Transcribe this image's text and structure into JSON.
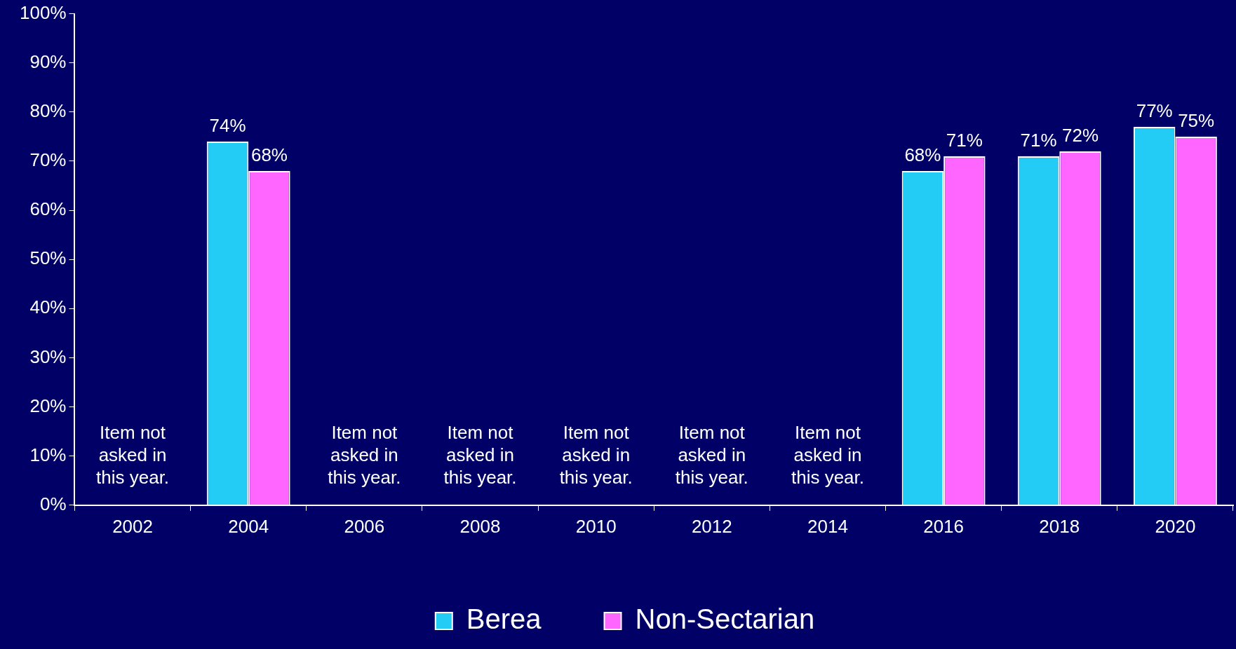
{
  "chart_data": {
    "type": "bar",
    "categories": [
      "2002",
      "2004",
      "2006",
      "2008",
      "2010",
      "2012",
      "2014",
      "2016",
      "2018",
      "2020"
    ],
    "series": [
      {
        "name": "Berea",
        "color": "#22ccf5",
        "values": [
          null,
          74,
          null,
          null,
          null,
          null,
          null,
          68,
          71,
          77
        ],
        "value_labels": [
          null,
          "74%",
          null,
          null,
          null,
          null,
          null,
          "68%",
          "71%",
          "77%"
        ]
      },
      {
        "name": "Non-Sectarian",
        "color": "#ff66ff",
        "values": [
          null,
          68,
          null,
          null,
          null,
          null,
          null,
          71,
          72,
          75
        ],
        "value_labels": [
          null,
          "68%",
          null,
          null,
          null,
          null,
          null,
          "71%",
          "72%",
          "75%"
        ]
      }
    ],
    "ylim": [
      0,
      100
    ],
    "yticks": [
      {
        "value": 0,
        "label": "0%"
      },
      {
        "value": 10,
        "label": "10%"
      },
      {
        "value": 20,
        "label": "20%"
      },
      {
        "value": 30,
        "label": "30%"
      },
      {
        "value": 40,
        "label": "40%"
      },
      {
        "value": 50,
        "label": "50%"
      },
      {
        "value": 60,
        "label": "60%"
      },
      {
        "value": 70,
        "label": "70%"
      },
      {
        "value": 80,
        "label": "80%"
      },
      {
        "value": 90,
        "label": "90%"
      },
      {
        "value": 100,
        "label": "100%"
      }
    ],
    "grid": false,
    "legend": "bottom",
    "annotations": [
      "Item not asked in this year.",
      "Item not asked in this year.",
      "Item not asked in this year.",
      "Item not asked in this year.",
      "Item not asked in this year.",
      "Item not asked in this year."
    ]
  }
}
